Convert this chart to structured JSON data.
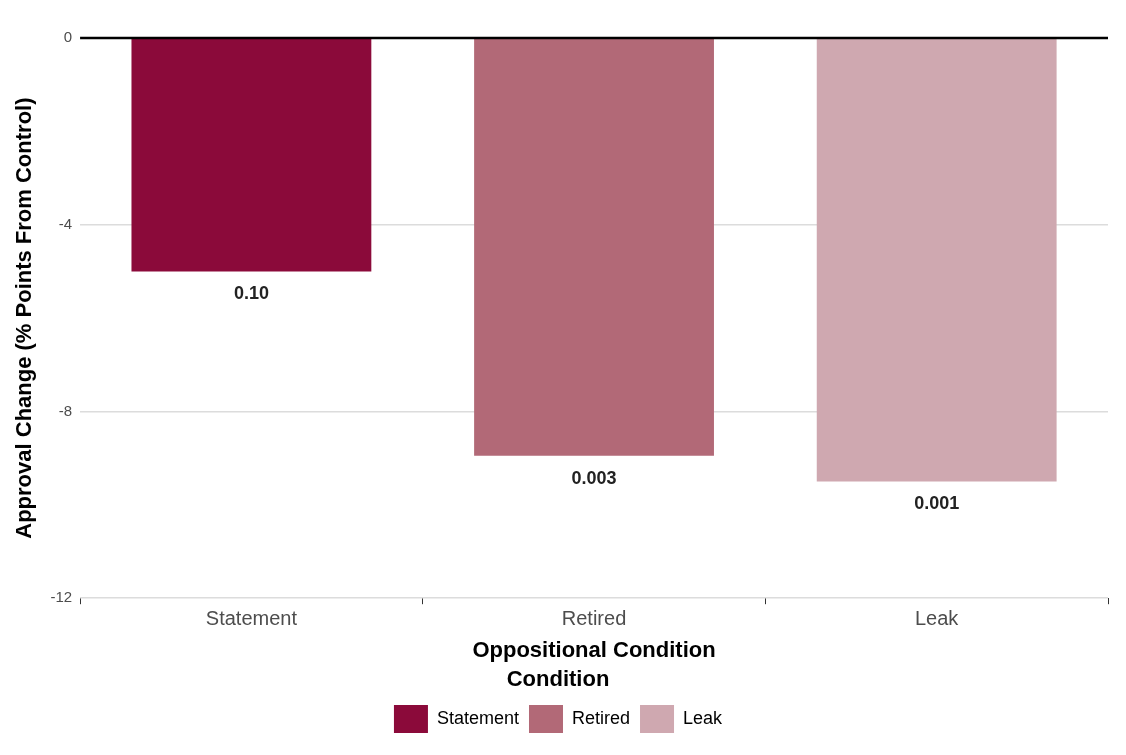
{
  "chart_data": {
    "type": "bar",
    "xlabel": "Oppositional Condition",
    "ylabel": "Approval Change (% Points From Control)",
    "legend_title": "Condition",
    "categories": [
      "Statement",
      "Retired",
      "Leak"
    ],
    "series": [
      {
        "name": "Statement",
        "color": "#8b0a3a",
        "values": [
          -5.0,
          null,
          null
        ]
      },
      {
        "name": "Retired",
        "color": "#b26977",
        "values": [
          null,
          -8.95,
          null
        ]
      },
      {
        "name": "Leak",
        "color": "#cfa8b0",
        "values": [
          null,
          null,
          -9.5
        ]
      }
    ],
    "ylim": [
      -12,
      0
    ],
    "yticks": [
      0,
      -4,
      -8,
      -12
    ],
    "grid": "y",
    "legend": "bottom",
    "ref_lines": [
      {
        "axis": "y",
        "value": 0,
        "color": "#000000"
      }
    ],
    "annotations": [
      {
        "text": "0.10",
        "x": "Statement",
        "y": -5.0
      },
      {
        "text": "0.003",
        "x": "Retired",
        "y": -8.95
      },
      {
        "text": "0.001",
        "x": "Leak",
        "y": -9.5
      }
    ]
  }
}
